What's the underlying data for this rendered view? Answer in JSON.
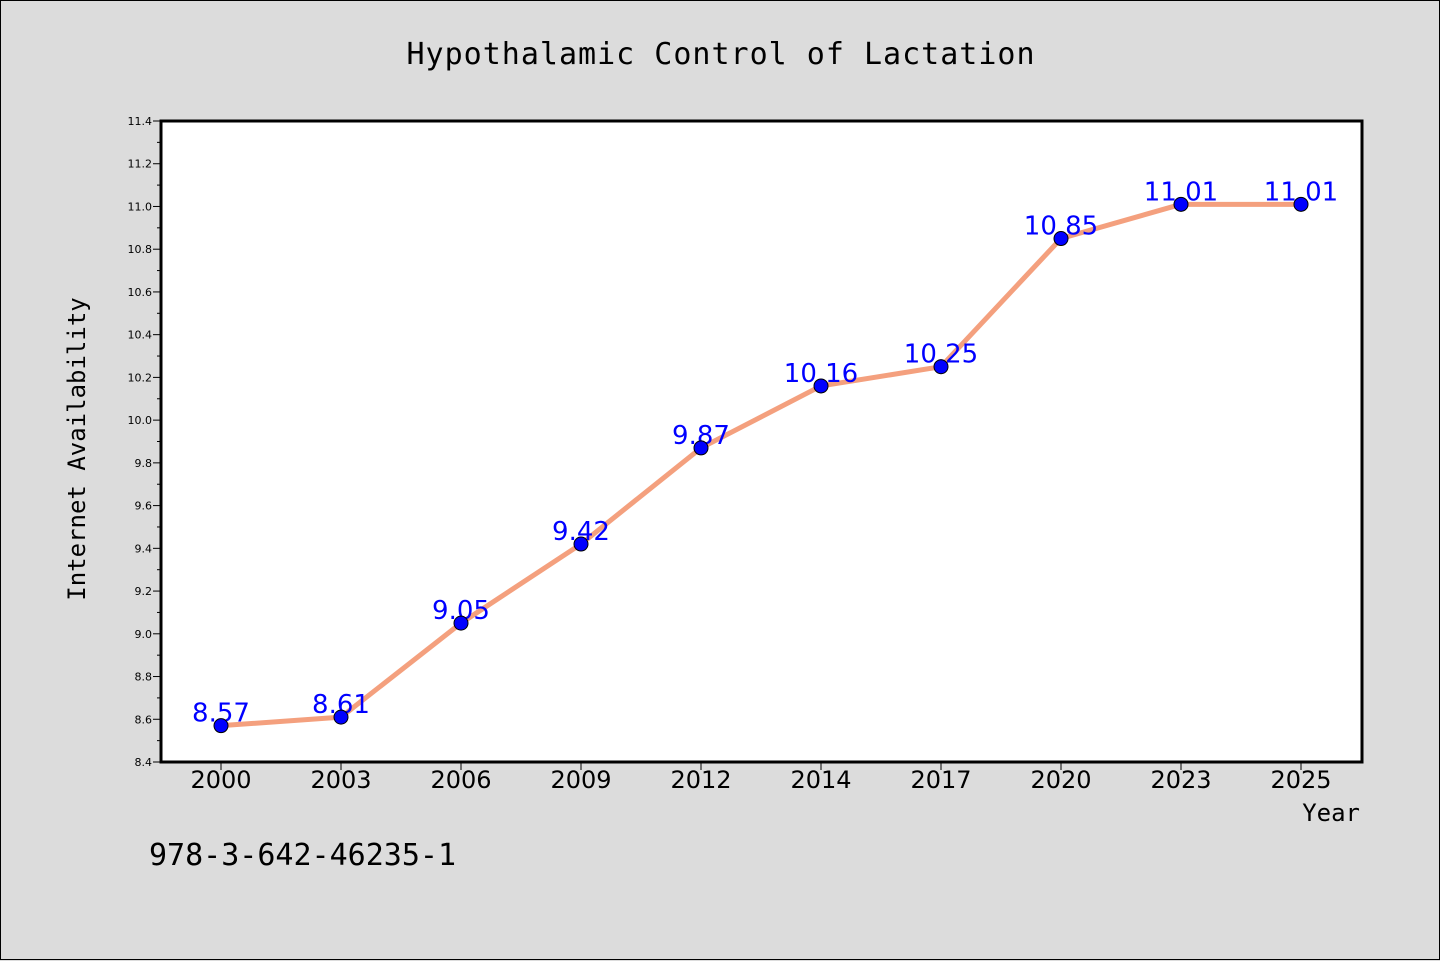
{
  "chart_data": {
    "type": "line",
    "title": "Hypothalamic Control of Lactation",
    "xlabel": "Year",
    "ylabel": "Internet Availability",
    "categories": [
      "2000",
      "2003",
      "2006",
      "2009",
      "2012",
      "2014",
      "2017",
      "2020",
      "2023",
      "2025"
    ],
    "values": [
      8.57,
      8.61,
      9.05,
      9.42,
      9.87,
      10.16,
      10.25,
      10.85,
      11.01,
      11.01
    ],
    "data_labels": [
      "8.57",
      "8.61",
      "9.05",
      "9.42",
      "9.87",
      "10.16",
      "10.25",
      "10.85",
      "11.01",
      "11.01"
    ],
    "ylim": [
      8.4,
      11.4
    ],
    "yticks": [
      "8.4",
      "8.6",
      "8.8",
      "9.0",
      "9.2",
      "9.4",
      "9.6",
      "9.8",
      "10.0",
      "10.2",
      "10.4",
      "10.6",
      "10.8",
      "11.0",
      "11.2",
      "11.4"
    ],
    "grid": false,
    "line_color": "#f4a07e",
    "marker_color": "#0000ff",
    "label_color": "#0000ff"
  },
  "footer": {
    "isbn": "978-3-642-46235-1"
  }
}
